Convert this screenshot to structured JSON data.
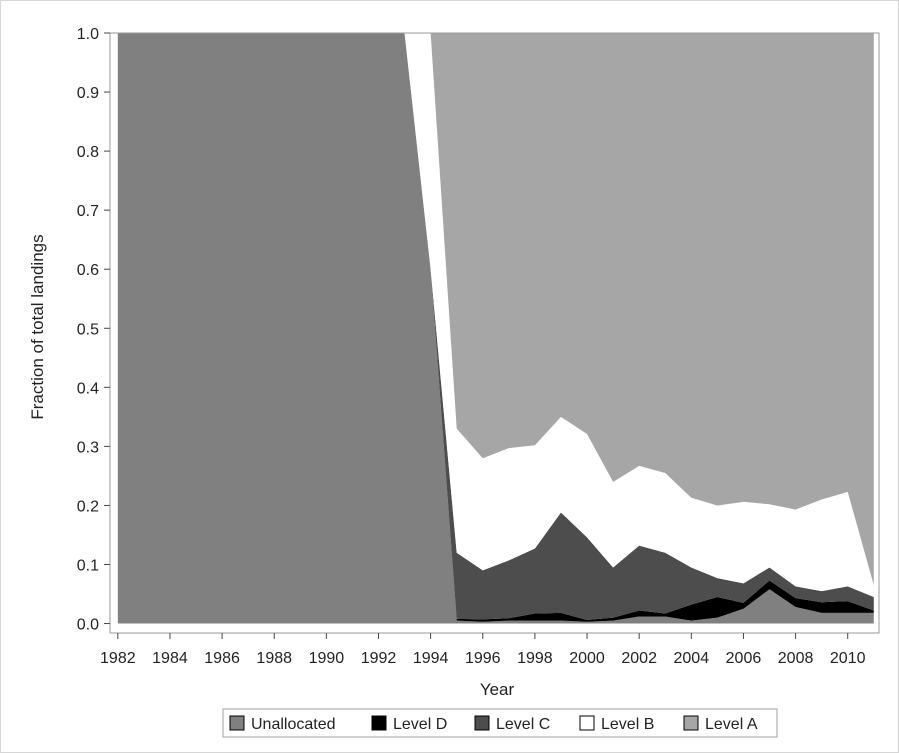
{
  "chart_data": {
    "type": "area",
    "stacked": true,
    "xlabel": "Year",
    "ylabel": "Fraction of total landings",
    "xlim": [
      1981.7,
      2011.2
    ],
    "ylim": [
      -0.016,
      1.0
    ],
    "xticks": [
      "1982",
      "1984",
      "1986",
      "1988",
      "1990",
      "1992",
      "1994",
      "1996",
      "1998",
      "2000",
      "2002",
      "2004",
      "2006",
      "2008",
      "2010"
    ],
    "yticks": [
      "0.0",
      "0.1",
      "0.2",
      "0.3",
      "0.4",
      "0.5",
      "0.6",
      "0.7",
      "0.8",
      "0.9",
      "1.0"
    ],
    "legend_position": "bottom",
    "x": [
      1982,
      1983,
      1984,
      1985,
      1986,
      1987,
      1988,
      1989,
      1990,
      1991,
      1992,
      1993,
      1994,
      1995,
      1996,
      1997,
      1998,
      1999,
      2000,
      2001,
      2002,
      2003,
      2004,
      2005,
      2006,
      2007,
      2008,
      2009,
      2010,
      2011
    ],
    "series": [
      {
        "name": "Unallocated",
        "color": "#808080",
        "values": [
          1,
          1,
          1,
          1,
          1,
          1,
          1,
          1,
          1,
          1,
          1,
          1,
          0.6,
          0.005,
          0.003,
          0.005,
          0.005,
          0.005,
          0.003,
          0.005,
          0.012,
          0.012,
          0.005,
          0.01,
          0.025,
          0.058,
          0.028,
          0.018,
          0.018,
          0.018
        ]
      },
      {
        "name": "Level D",
        "color": "#000000",
        "values": [
          0,
          0,
          0,
          0,
          0,
          0,
          0,
          0,
          0,
          0,
          0,
          0,
          0,
          0.003,
          0.004,
          0.004,
          0.012,
          0.013,
          0.003,
          0.005,
          0.01,
          0.005,
          0.027,
          0.035,
          0.01,
          0.015,
          0.015,
          0.018,
          0.02,
          0.004
        ]
      },
      {
        "name": "Level C",
        "color": "#4d4d4d",
        "values": [
          0,
          0,
          0,
          0,
          0,
          0,
          0,
          0,
          0,
          0,
          0,
          0,
          0,
          0.112,
          0.083,
          0.098,
          0.11,
          0.17,
          0.14,
          0.085,
          0.11,
          0.103,
          0.063,
          0.032,
          0.033,
          0.022,
          0.02,
          0.019,
          0.025,
          0.023
        ]
      },
      {
        "name": "Level B",
        "color": "#ffffff",
        "values": [
          0,
          0,
          0,
          0,
          0,
          0,
          0,
          0,
          0,
          0,
          0,
          0,
          0.4,
          0.21,
          0.19,
          0.19,
          0.175,
          0.162,
          0.175,
          0.145,
          0.135,
          0.135,
          0.118,
          0.123,
          0.138,
          0.107,
          0.13,
          0.155,
          0.16,
          0.02
        ]
      },
      {
        "name": "Level A",
        "color": "#a6a6a6",
        "values": [
          0,
          0,
          0,
          0,
          0,
          0,
          0,
          0,
          0,
          0,
          0,
          0,
          0,
          0.67,
          0.72,
          0.703,
          0.698,
          0.65,
          0.679,
          0.76,
          0.733,
          0.745,
          0.787,
          0.8,
          0.794,
          0.798,
          0.807,
          0.79,
          0.777,
          0.935
        ]
      }
    ]
  }
}
